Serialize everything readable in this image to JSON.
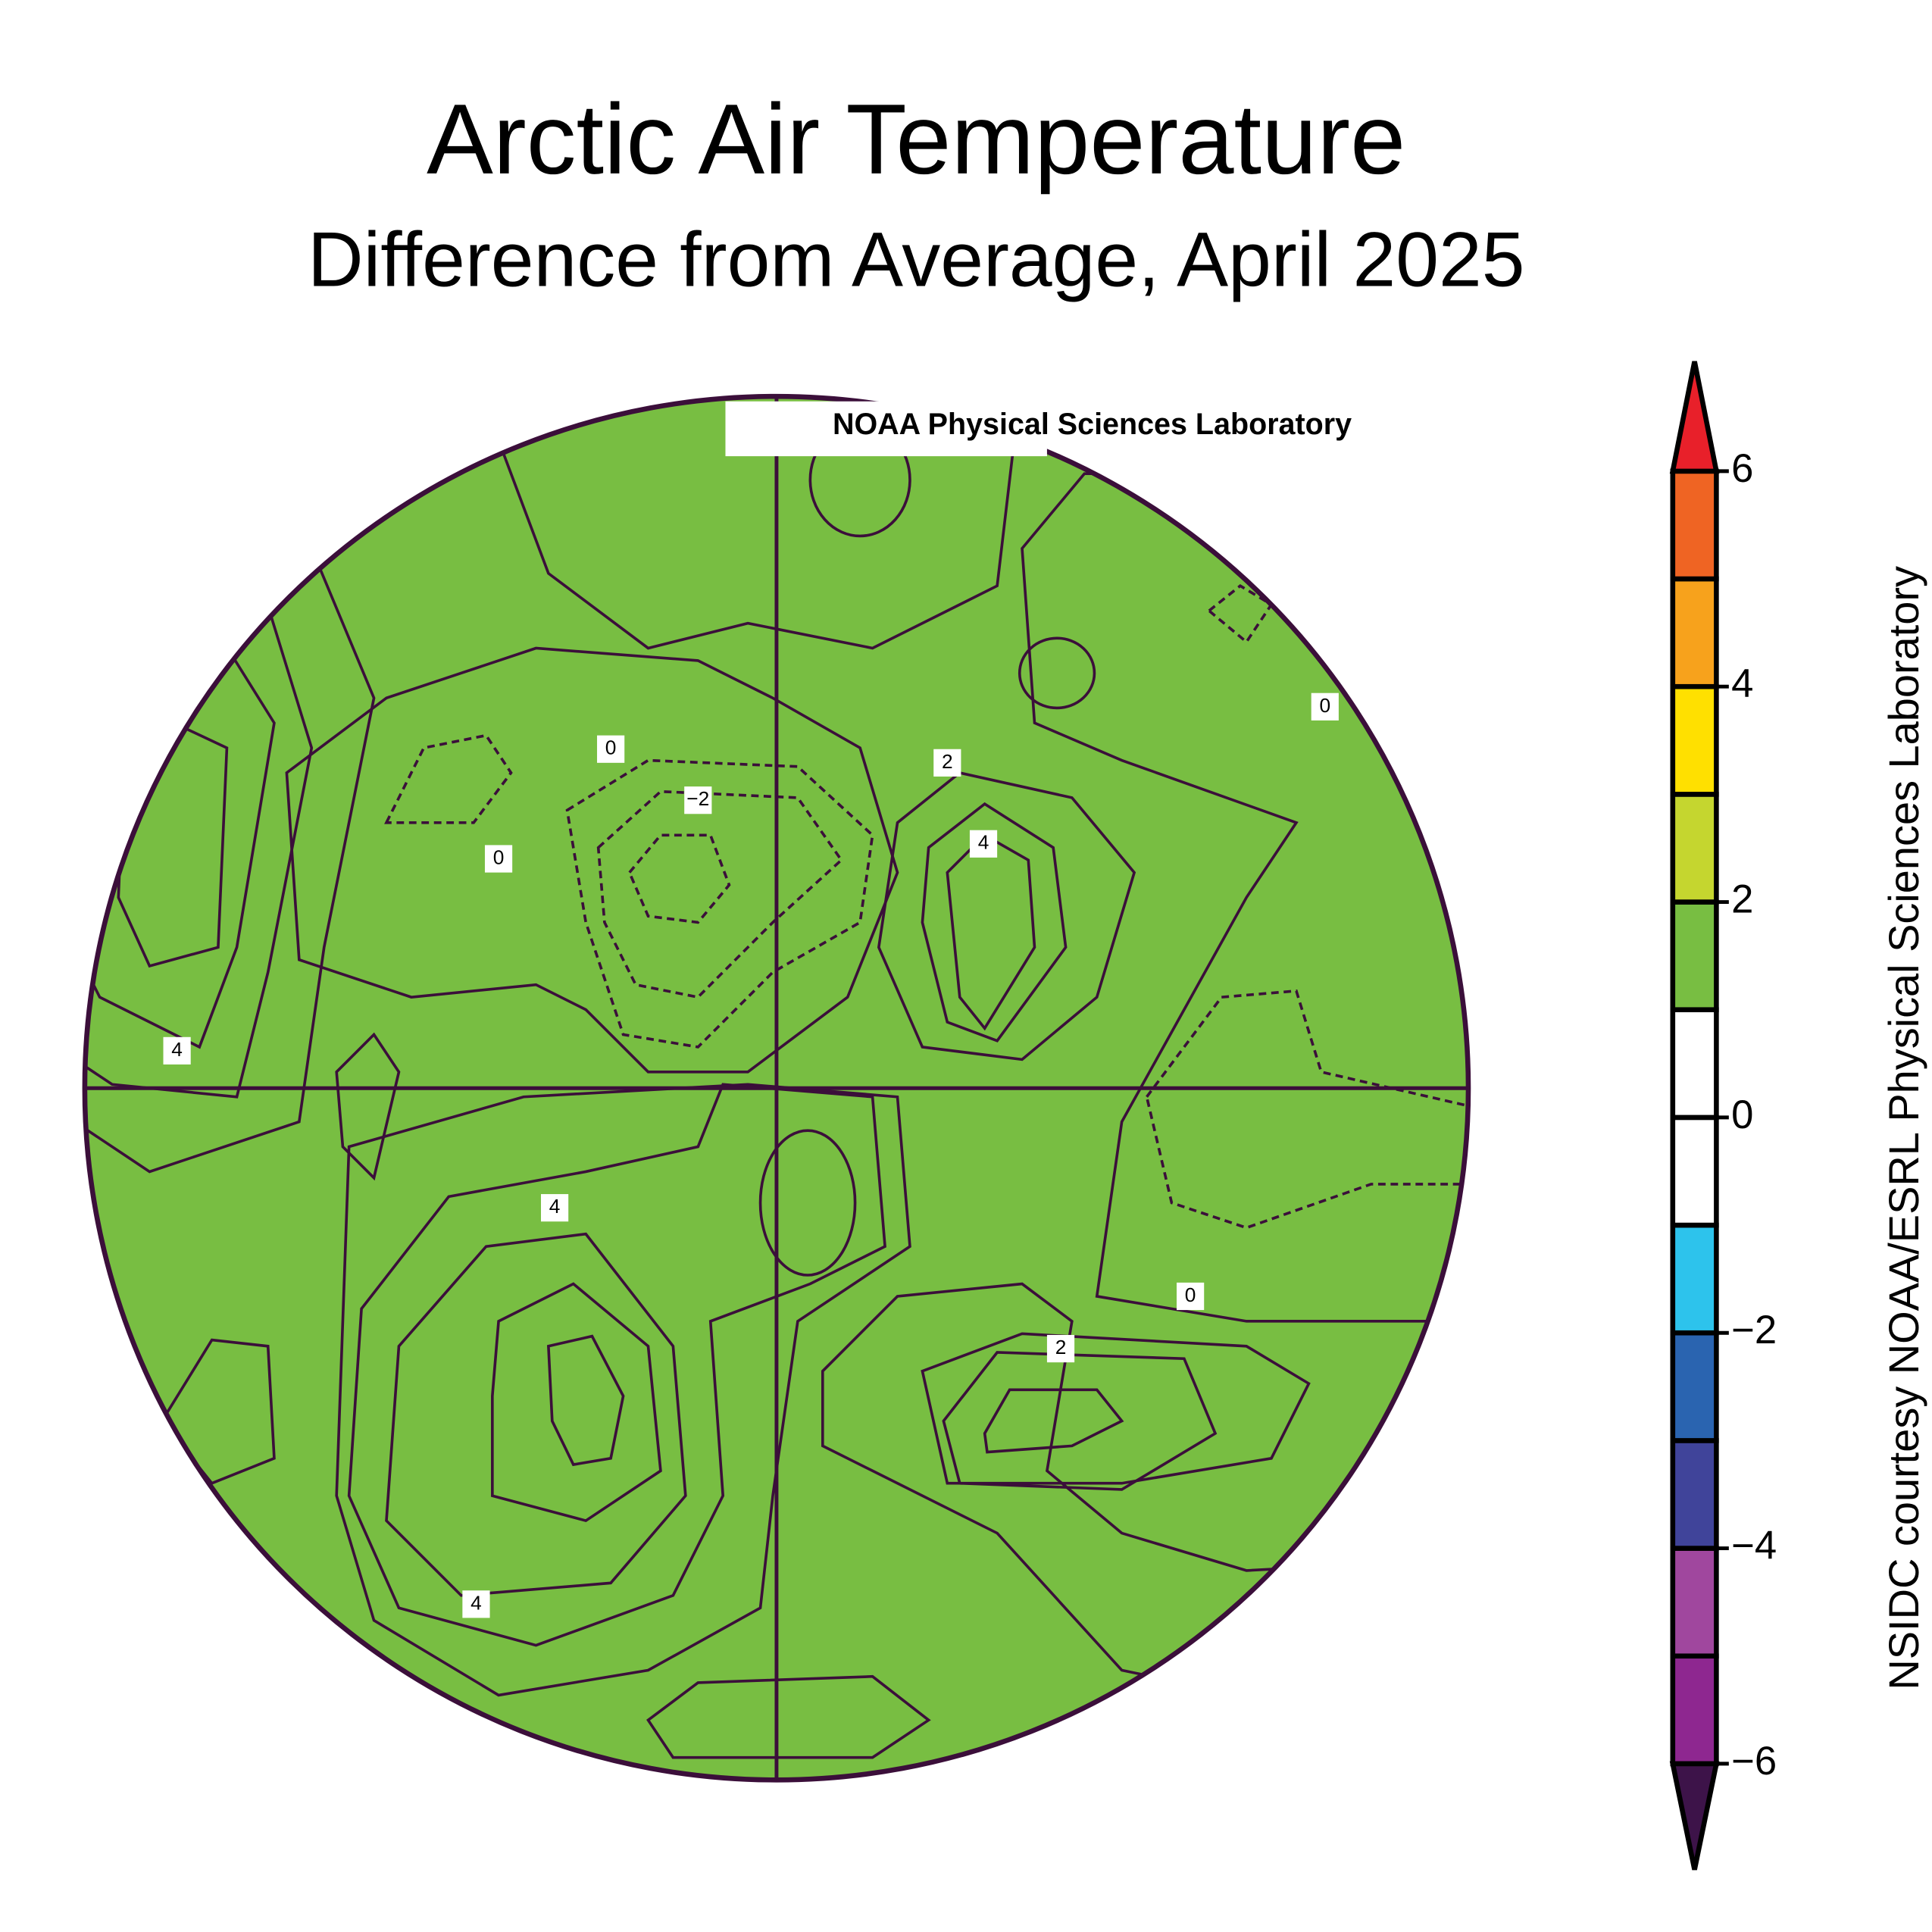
{
  "title": "Arctic Air Temperature",
  "subtitle": "Difference from Average, April 2025",
  "watermark": "NOAA Physical Sciences Laboratory",
  "credit": "NSIDC courtesy NOAA/ESRL Physical Sciences Laboratory",
  "contour_labels": [
    "0",
    "0",
    "0",
    "0",
    "−2",
    "2",
    "2",
    "4",
    "4",
    "4",
    "4"
  ],
  "colorbar": {
    "limits": [
      -6,
      6
    ],
    "colors": [
      "#8e2790",
      "#a0479e",
      "#40449a",
      "#2a64b0",
      "#2dc3ec",
      "#ffffff",
      "#ffffff",
      "#78be42",
      "#c5d62f",
      "#ffe000",
      "#f7a21c",
      "#ef6423"
    ],
    "over_color": "#e8202a",
    "under_color": "#3d1349",
    "ticks": [
      {
        "value": -6,
        "label": "−6"
      },
      {
        "value": -4,
        "label": "−4"
      },
      {
        "value": -2,
        "label": "−2"
      },
      0,
      2,
      4,
      6
    ]
  }
}
